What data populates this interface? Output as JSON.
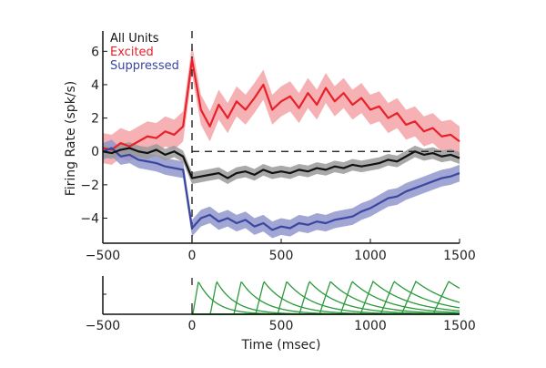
{
  "chart_data": [
    {
      "type": "line",
      "ylabel": "Firing Rate (spk/s)",
      "xlim": [
        -500,
        1500
      ],
      "ylim": [
        -5.5,
        7
      ],
      "xticks": [
        "-500",
        "0",
        "500",
        "1000",
        "1500"
      ],
      "yticks": [
        "-4",
        "-2",
        "0",
        "2",
        "4",
        "6"
      ],
      "legend": "top-left",
      "x": [
        -500,
        -450,
        -400,
        -350,
        -300,
        -250,
        -200,
        -150,
        -100,
        -50,
        0,
        50,
        100,
        150,
        200,
        250,
        300,
        350,
        400,
        450,
        500,
        550,
        600,
        650,
        700,
        750,
        800,
        850,
        900,
        950,
        1000,
        1050,
        1100,
        1150,
        1200,
        1250,
        1300,
        1350,
        1400,
        1450,
        1500
      ],
      "series": [
        {
          "name": "All Units",
          "color": "#111111",
          "band_color": "#9a9a9a",
          "sem": 0.35,
          "values": [
            0,
            -0.1,
            0.1,
            0.2,
            0,
            -0.1,
            0.1,
            -0.2,
            0,
            -0.3,
            -1.6,
            -1.5,
            -1.4,
            -1.3,
            -1.6,
            -1.3,
            -1.2,
            -1.4,
            -1.1,
            -1.3,
            -1.2,
            -1.3,
            -1.1,
            -1.2,
            -1.0,
            -1.1,
            -0.9,
            -1.0,
            -0.8,
            -0.9,
            -0.8,
            -0.7,
            -0.5,
            -0.6,
            -0.3,
            0,
            -0.2,
            -0.1,
            -0.3,
            -0.2,
            -0.4
          ]
        },
        {
          "name": "Excited",
          "color": "#e8202a",
          "band_color": "#f3a3a7",
          "sem": 0.9,
          "values": [
            0.2,
            0.1,
            0.5,
            0.3,
            0.6,
            0.9,
            0.8,
            1.2,
            1.0,
            1.5,
            5.5,
            2.5,
            1.5,
            2.8,
            2.0,
            3.0,
            2.5,
            3.2,
            4.0,
            2.5,
            3.0,
            3.3,
            2.6,
            3.5,
            2.8,
            3.8,
            3.0,
            3.5,
            2.8,
            3.2,
            2.5,
            2.7,
            2.0,
            2.3,
            1.6,
            1.8,
            1.2,
            1.4,
            0.9,
            1.0,
            0.6
          ]
        },
        {
          "name": "Suppressed",
          "color": "#3a46a0",
          "band_color": "#9096cc",
          "sem": 0.5,
          "values": [
            0,
            0.2,
            -0.3,
            -0.2,
            -0.5,
            -0.6,
            -0.7,
            -0.9,
            -1.0,
            -1.1,
            -4.6,
            -4.0,
            -3.8,
            -4.2,
            -4.0,
            -4.3,
            -4.1,
            -4.5,
            -4.3,
            -4.7,
            -4.5,
            -4.6,
            -4.3,
            -4.4,
            -4.2,
            -4.3,
            -4.1,
            -4.0,
            -3.9,
            -3.6,
            -3.4,
            -3.1,
            -2.8,
            -2.7,
            -2.4,
            -2.2,
            -2.0,
            -1.8,
            -1.6,
            -1.5,
            -1.3
          ]
        }
      ],
      "reference_lines": {
        "horizontal_y": 0,
        "vertical_x": 0,
        "style": "dashed"
      }
    },
    {
      "type": "line",
      "xlabel": "Time (msec)",
      "xlim": [
        -500,
        1500
      ],
      "xticks": [
        "-500",
        "0",
        "500",
        "1000",
        "1500"
      ],
      "color": "#2a9a3a",
      "basis_peaks_ms": [
        36,
        138,
        276,
        403,
        531,
        658,
        776,
        898,
        1015,
        1133,
        1255,
        1439
      ]
    }
  ]
}
